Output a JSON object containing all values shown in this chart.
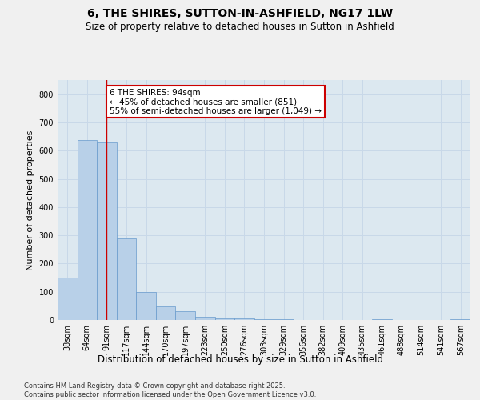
{
  "title": "6, THE SHIRES, SUTTON-IN-ASHFIELD, NG17 1LW",
  "subtitle": "Size of property relative to detached houses in Sutton in Ashfield",
  "xlabel": "Distribution of detached houses by size in Sutton in Ashfield",
  "ylabel": "Number of detached properties",
  "categories": [
    "38sqm",
    "64sqm",
    "91sqm",
    "117sqm",
    "144sqm",
    "170sqm",
    "197sqm",
    "223sqm",
    "250sqm",
    "276sqm",
    "303sqm",
    "329sqm",
    "356sqm",
    "382sqm",
    "409sqm",
    "435sqm",
    "461sqm",
    "488sqm",
    "514sqm",
    "541sqm",
    "567sqm"
  ],
  "values": [
    150,
    638,
    630,
    290,
    100,
    47,
    30,
    10,
    5,
    5,
    2,
    2,
    0,
    0,
    0,
    0,
    2,
    0,
    0,
    0,
    2
  ],
  "bar_color": "#b8d0e8",
  "bar_edge_color": "#6699cc",
  "red_line_index": 2,
  "annotation_text": "6 THE SHIRES: 94sqm\n← 45% of detached houses are smaller (851)\n55% of semi-detached houses are larger (1,049) →",
  "annotation_box_color": "#ffffff",
  "annotation_box_edge": "#cc0000",
  "red_line_color": "#cc0000",
  "ylim": [
    0,
    850
  ],
  "yticks": [
    0,
    100,
    200,
    300,
    400,
    500,
    600,
    700,
    800
  ],
  "grid_color": "#c8d8e8",
  "bg_color": "#dce8f0",
  "fig_bg_color": "#f0f0f0",
  "footer": "Contains HM Land Registry data © Crown copyright and database right 2025.\nContains public sector information licensed under the Open Government Licence v3.0.",
  "title_fontsize": 10,
  "subtitle_fontsize": 8.5,
  "xlabel_fontsize": 8.5,
  "ylabel_fontsize": 8,
  "tick_fontsize": 7,
  "footer_fontsize": 6,
  "ann_fontsize": 7.5
}
